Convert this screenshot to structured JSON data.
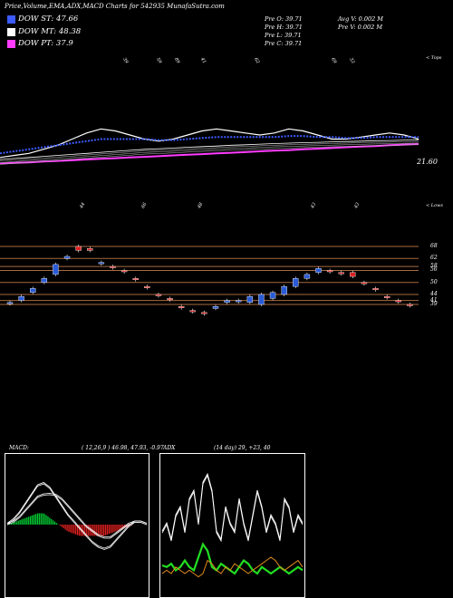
{
  "header": {
    "title": "Price,Volume,EMA,ADX,MACD Charts for 542935 MunafaSutra.com"
  },
  "legend": [
    {
      "label": "DOW ST: 47.66",
      "color": "#3b5bff"
    },
    {
      "label": "DOW MT: 48.38",
      "color": "#ffffff"
    },
    {
      "label": "DOW PT: 37.9",
      "color": "#ff3cff"
    }
  ],
  "stats": {
    "col1": [
      "Pre  O: 39.71",
      "Pre  H: 39.71",
      "Pre  L: 39.71",
      "Pre  C: 39.71"
    ],
    "col2": [
      "Avg V: 0.002  M",
      "Pre  V: 0.002  M"
    ]
  },
  "ema_panel": {
    "price_label": "21.60",
    "corner_label": "< Tops",
    "top_labels": [
      "39",
      "59",
      "89",
      "41",
      "62",
      "69",
      "33"
    ]
  },
  "candle_panel": {
    "corner_label": "< Lows",
    "top_labels": [
      "44",
      "66",
      "48",
      "43",
      "43"
    ],
    "levels": [
      "68",
      "62",
      "58",
      "56",
      "50",
      "44",
      "41",
      "39"
    ]
  },
  "macd": {
    "label": "MACD:",
    "values": "( 12,26,9 ) 46.98,  47.93,  -0.97"
  },
  "adx": {
    "label": "ADX",
    "values": "(14  day) 29,  +23,  40"
  },
  "colors": {
    "up_candle": "#2a5bd7",
    "down_candle": "#e02020",
    "level_line": "#a86b40",
    "ema_short": "#3b5bff",
    "ema_long": "#ff3cff",
    "macd_hist_pos": "#00cc33",
    "macd_hist_neg": "#e02020",
    "adx_plus": "#22dd22",
    "adx_minus": "#e08a1a"
  },
  "chart_data": [
    {
      "type": "line",
      "title": "",
      "series": [
        {
          "values": [
            41,
            42,
            43,
            45,
            47,
            50,
            53,
            55,
            54,
            52,
            50,
            49,
            50,
            52,
            54,
            55,
            54,
            53,
            52,
            53,
            55,
            54,
            52,
            50,
            50,
            51,
            52,
            53,
            52,
            50
          ]
        },
        {
          "values": [
            43,
            44,
            45,
            46,
            47,
            48,
            49,
            50,
            50,
            50,
            50,
            49.5,
            49.5,
            50,
            50.5,
            51,
            51,
            51,
            51,
            51,
            51.5,
            51.5,
            51,
            51,
            50.5,
            50.5,
            51,
            51,
            51,
            51
          ]
        },
        {
          "values": [
            40,
            40.5,
            41,
            41.5,
            42,
            42.5,
            43,
            43.5,
            44,
            44.5,
            45,
            45.3,
            45.6,
            46,
            46.3,
            46.6,
            47,
            47.2,
            47.5,
            47.8,
            48,
            48.2,
            48.4,
            48.6,
            48.8,
            49,
            49.2,
            49.3,
            49.5,
            49.6
          ]
        },
        {
          "values": [
            38,
            38.3,
            38.6,
            39,
            39.3,
            39.6,
            40,
            40.3,
            40.6,
            41,
            41.3,
            41.6,
            42,
            42.3,
            42.6,
            43,
            43.3,
            43.6,
            44,
            44.3,
            44.6,
            45,
            45.3,
            45.6,
            46,
            46.3,
            46.6,
            47,
            47.3,
            47.6
          ]
        }
      ]
    },
    {
      "type": "bar",
      "title": "",
      "candles": [
        {
          "o": 40,
          "c": 40,
          "up": true
        },
        {
          "o": 41,
          "c": 43,
          "up": true
        },
        {
          "o": 45,
          "c": 47,
          "up": true
        },
        {
          "o": 50,
          "c": 52,
          "up": true
        },
        {
          "o": 54,
          "c": 59,
          "up": true
        },
        {
          "o": 62,
          "c": 63,
          "up": true
        },
        {
          "o": 66,
          "c": 68,
          "up": false
        },
        {
          "o": 67,
          "c": 66,
          "up": false
        },
        {
          "o": 60,
          "c": 60,
          "up": true
        },
        {
          "o": 58,
          "c": 58,
          "up": false
        },
        {
          "o": 56,
          "c": 56,
          "up": false
        },
        {
          "o": 52,
          "c": 52,
          "up": false
        },
        {
          "o": 48,
          "c": 48,
          "up": false
        },
        {
          "o": 44,
          "c": 44,
          "up": false
        },
        {
          "o": 42,
          "c": 42,
          "up": false
        },
        {
          "o": 38,
          "c": 38,
          "up": false
        },
        {
          "o": 36,
          "c": 36,
          "up": false
        },
        {
          "o": 35,
          "c": 35,
          "up": false
        },
        {
          "o": 37,
          "c": 38,
          "up": true
        },
        {
          "o": 40,
          "c": 41,
          "up": true
        },
        {
          "o": 41,
          "c": 41,
          "up": true
        },
        {
          "o": 40,
          "c": 43,
          "up": true
        },
        {
          "o": 39,
          "c": 44,
          "up": true
        },
        {
          "o": 42,
          "c": 45,
          "up": true
        },
        {
          "o": 44,
          "c": 48,
          "up": true
        },
        {
          "o": 48,
          "c": 52,
          "up": true
        },
        {
          "o": 52,
          "c": 54,
          "up": true
        },
        {
          "o": 55,
          "c": 57,
          "up": true
        },
        {
          "o": 56,
          "c": 56,
          "up": false
        },
        {
          "o": 55,
          "c": 55,
          "up": false
        },
        {
          "o": 55,
          "c": 53,
          "up": false
        },
        {
          "o": 50,
          "c": 50,
          "up": false
        },
        {
          "o": 47,
          "c": 47,
          "up": false
        },
        {
          "o": 43,
          "c": 43,
          "up": false
        },
        {
          "o": 41,
          "c": 41,
          "up": false
        },
        {
          "o": 39,
          "c": 39,
          "up": false
        }
      ]
    },
    {
      "type": "line",
      "title": "",
      "series": [
        {
          "values": [
            0,
            0.5,
            1.5,
            3,
            4.5,
            6,
            6.5,
            6.6,
            6.4,
            5.5,
            4,
            2.5,
            1,
            -0.5,
            -1.5,
            -2.5,
            -3,
            -3,
            -2,
            -1,
            0,
            0.5,
            0.5,
            0
          ]
        },
        {
          "values": [
            0,
            1,
            2.5,
            4.5,
            6.5,
            8.5,
            9,
            8,
            6,
            4,
            2,
            0.5,
            -1,
            -2.5,
            -4,
            -5,
            -5.5,
            -5,
            -3.5,
            -2,
            -0.5,
            0.5,
            0.5,
            0
          ]
        },
        {
          "values": [
            0,
            0.5,
            1,
            1.5,
            2,
            2.5,
            2.5,
            1.5,
            0.5,
            -0.5,
            -1.5,
            -2,
            -2.5,
            -2.5,
            -2.5,
            -2.5,
            -2.5,
            -2,
            -1.5,
            -1,
            -0.5,
            0,
            0,
            0
          ]
        }
      ]
    },
    {
      "type": "line",
      "title": "",
      "series": [
        {
          "values": [
            35,
            40,
            30,
            45,
            50,
            35,
            55,
            60,
            40,
            65,
            70,
            60,
            35,
            30,
            50,
            40,
            35,
            55,
            40,
            30,
            45,
            60,
            50,
            35,
            45,
            40,
            30,
            55,
            50,
            35,
            45,
            40
          ]
        },
        {
          "values": [
            15,
            14,
            16,
            12,
            14,
            18,
            14,
            12,
            20,
            28,
            24,
            14,
            12,
            16,
            14,
            12,
            10,
            14,
            18,
            16,
            12,
            10,
            14,
            12,
            10,
            12,
            14,
            12,
            10,
            12,
            14,
            12
          ]
        },
        {
          "values": [
            10,
            12,
            10,
            14,
            12,
            10,
            12,
            10,
            8,
            10,
            18,
            16,
            12,
            10,
            14,
            12,
            16,
            14,
            12,
            10,
            12,
            14,
            16,
            18,
            20,
            18,
            14,
            12,
            14,
            16,
            18,
            14
          ]
        }
      ]
    }
  ]
}
